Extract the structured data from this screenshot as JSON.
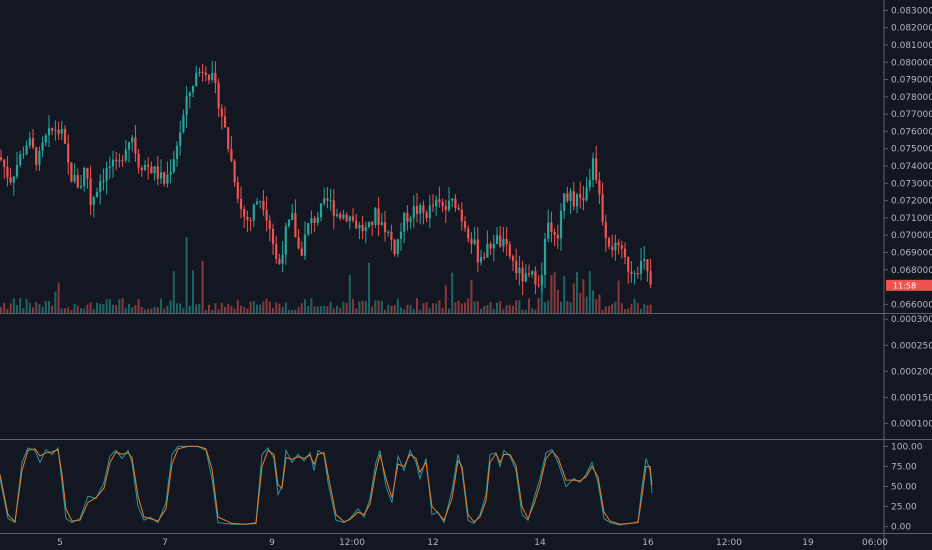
{
  "colors": {
    "background": "#131722",
    "up": "#26a69a",
    "down": "#ef5350",
    "k_line": "#2196a8",
    "d_line": "#e67e22",
    "separator": "#5d606b",
    "axis_text": "#b2b5be"
  },
  "chart_data": [
    {
      "type": "candlestick",
      "panel": "price",
      "y_ticks": [
        "0.083000",
        "0.082000",
        "0.081000",
        "0.080000",
        "0.079000",
        "0.078000",
        "0.077000",
        "0.076000",
        "0.075000",
        "0.074000",
        "0.073000",
        "0.072000",
        "0.071000",
        "0.070000",
        "0.069000",
        "0.068000",
        "0.066000"
      ],
      "ylim": [
        0.0655,
        0.0836
      ],
      "last_price_label": "11:58",
      "last_price": 0.0671,
      "path": [
        [
          0,
          0.0745
        ],
        [
          10,
          0.0732
        ],
        [
          20,
          0.0745
        ],
        [
          28,
          0.0755
        ],
        [
          38,
          0.0742
        ],
        [
          45,
          0.0755
        ],
        [
          55,
          0.0762
        ],
        [
          62,
          0.0758
        ],
        [
          70,
          0.0735
        ],
        [
          80,
          0.0728
        ],
        [
          86,
          0.0742
        ],
        [
          90,
          0.0718
        ],
        [
          95,
          0.0725
        ],
        [
          100,
          0.0732
        ],
        [
          110,
          0.074
        ],
        [
          118,
          0.0738
        ],
        [
          125,
          0.0752
        ],
        [
          132,
          0.0758
        ],
        [
          138,
          0.0742
        ],
        [
          148,
          0.074
        ],
        [
          158,
          0.0735
        ],
        [
          165,
          0.073
        ],
        [
          172,
          0.0742
        ],
        [
          180,
          0.076
        ],
        [
          188,
          0.078
        ],
        [
          195,
          0.0792
        ],
        [
          205,
          0.0798
        ],
        [
          212,
          0.079
        ],
        [
          220,
          0.0775
        ],
        [
          228,
          0.0752
        ],
        [
          236,
          0.073
        ],
        [
          242,
          0.0712
        ],
        [
          250,
          0.0708
        ],
        [
          256,
          0.072
        ],
        [
          262,
          0.0722
        ],
        [
          270,
          0.0705
        ],
        [
          278,
          0.068
        ],
        [
          285,
          0.07
        ],
        [
          292,
          0.071
        ],
        [
          300,
          0.0688
        ],
        [
          308,
          0.0705
        ],
        [
          318,
          0.0712
        ],
        [
          328,
          0.072
        ],
        [
          338,
          0.0712
        ],
        [
          348,
          0.0712
        ],
        [
          358,
          0.0705
        ],
        [
          368,
          0.0702
        ],
        [
          375,
          0.0712
        ],
        [
          385,
          0.0705
        ],
        [
          395,
          0.0692
        ],
        [
          405,
          0.071
        ],
        [
          415,
          0.0715
        ],
        [
          425,
          0.0712
        ],
        [
          435,
          0.0718
        ],
        [
          445,
          0.0715
        ],
        [
          455,
          0.072
        ],
        [
          462,
          0.071
        ],
        [
          470,
          0.07
        ],
        [
          478,
          0.0688
        ],
        [
          486,
          0.069
        ],
        [
          494,
          0.0698
        ],
        [
          502,
          0.0695
        ],
        [
          510,
          0.0688
        ],
        [
          518,
          0.0678
        ],
        [
          526,
          0.0674
        ],
        [
          534,
          0.0676
        ],
        [
          542,
          0.0675
        ],
        [
          548,
          0.0712
        ],
        [
          556,
          0.0695
        ],
        [
          564,
          0.0725
        ],
        [
          572,
          0.0722
        ],
        [
          580,
          0.0718
        ],
        [
          588,
          0.0728
        ],
        [
          594,
          0.0745
        ],
        [
          600,
          0.0718
        ],
        [
          607,
          0.0698
        ],
        [
          615,
          0.0692
        ],
        [
          622,
          0.0688
        ],
        [
          630,
          0.068
        ],
        [
          637,
          0.0682
        ],
        [
          644,
          0.0684
        ],
        [
          650,
          0.0671
        ]
      ],
      "last_x": 651
    },
    {
      "type": "bar",
      "panel": "volume",
      "note": "volume bars at base of price panel (no axis labels)"
    },
    {
      "type": "line",
      "panel": "indicator-empty",
      "y_ticks": [
        "0.000300",
        "0.000250",
        "0.000200",
        "0.000150",
        "0.000100"
      ],
      "ylim": [
        7e-05,
        0.00031
      ]
    },
    {
      "type": "line",
      "panel": "stochastic",
      "y_ticks": [
        "100.00",
        "75.00",
        "50.00",
        "25.00",
        "0.00"
      ],
      "ylim": [
        -8,
        108
      ],
      "series": [
        {
          "values_key": "k",
          "color_key": "k_line"
        },
        {
          "values_key": "d",
          "color_key": "d_line"
        }
      ],
      "k_path": [
        [
          0,
          60
        ],
        [
          8,
          10
        ],
        [
          15,
          5
        ],
        [
          22,
          80
        ],
        [
          28,
          98
        ],
        [
          35,
          95
        ],
        [
          40,
          80
        ],
        [
          46,
          96
        ],
        [
          52,
          90
        ],
        [
          58,
          98
        ],
        [
          62,
          55
        ],
        [
          66,
          10
        ],
        [
          72,
          5
        ],
        [
          80,
          10
        ],
        [
          88,
          38
        ],
        [
          96,
          35
        ],
        [
          104,
          55
        ],
        [
          110,
          88
        ],
        [
          116,
          95
        ],
        [
          122,
          85
        ],
        [
          128,
          95
        ],
        [
          132,
          80
        ],
        [
          138,
          25
        ],
        [
          144,
          8
        ],
        [
          150,
          12
        ],
        [
          158,
          5
        ],
        [
          166,
          30
        ],
        [
          172,
          90
        ],
        [
          178,
          100
        ],
        [
          188,
          100
        ],
        [
          198,
          100
        ],
        [
          206,
          95
        ],
        [
          212,
          60
        ],
        [
          218,
          5
        ],
        [
          232,
          3
        ],
        [
          246,
          3
        ],
        [
          256,
          5
        ],
        [
          262,
          90
        ],
        [
          268,
          98
        ],
        [
          274,
          85
        ],
        [
          278,
          40
        ],
        [
          282,
          50
        ],
        [
          286,
          95
        ],
        [
          292,
          80
        ],
        [
          298,
          90
        ],
        [
          304,
          82
        ],
        [
          310,
          92
        ],
        [
          314,
          70
        ],
        [
          318,
          95
        ],
        [
          324,
          90
        ],
        [
          328,
          55
        ],
        [
          336,
          8
        ],
        [
          344,
          5
        ],
        [
          350,
          10
        ],
        [
          358,
          22
        ],
        [
          364,
          12
        ],
        [
          370,
          35
        ],
        [
          376,
          80
        ],
        [
          380,
          95
        ],
        [
          386,
          50
        ],
        [
          392,
          30
        ],
        [
          398,
          88
        ],
        [
          404,
          70
        ],
        [
          410,
          95
        ],
        [
          416,
          80
        ],
        [
          420,
          60
        ],
        [
          426,
          85
        ],
        [
          432,
          15
        ],
        [
          438,
          18
        ],
        [
          444,
          5
        ],
        [
          452,
          45
        ],
        [
          458,
          90
        ],
        [
          462,
          70
        ],
        [
          468,
          8
        ],
        [
          474,
          4
        ],
        [
          480,
          15
        ],
        [
          486,
          40
        ],
        [
          490,
          90
        ],
        [
          496,
          92
        ],
        [
          500,
          75
        ],
        [
          504,
          95
        ],
        [
          510,
          88
        ],
        [
          516,
          70
        ],
        [
          522,
          15
        ],
        [
          528,
          8
        ],
        [
          534,
          35
        ],
        [
          540,
          60
        ],
        [
          546,
          92
        ],
        [
          552,
          96
        ],
        [
          558,
          80
        ],
        [
          566,
          50
        ],
        [
          574,
          60
        ],
        [
          580,
          55
        ],
        [
          586,
          65
        ],
        [
          592,
          80
        ],
        [
          598,
          55
        ],
        [
          604,
          10
        ],
        [
          610,
          5
        ],
        [
          620,
          2
        ],
        [
          630,
          4
        ],
        [
          638,
          6
        ],
        [
          642,
          50
        ],
        [
          646,
          85
        ],
        [
          650,
          70
        ],
        [
          652,
          42
        ]
      ],
      "d_path": [
        [
          0,
          65
        ],
        [
          8,
          15
        ],
        [
          15,
          6
        ],
        [
          22,
          70
        ],
        [
          28,
          95
        ],
        [
          35,
          97
        ],
        [
          40,
          88
        ],
        [
          46,
          92
        ],
        [
          52,
          93
        ],
        [
          58,
          96
        ],
        [
          62,
          65
        ],
        [
          66,
          22
        ],
        [
          72,
          7
        ],
        [
          80,
          8
        ],
        [
          88,
          30
        ],
        [
          96,
          36
        ],
        [
          104,
          48
        ],
        [
          110,
          80
        ],
        [
          116,
          93
        ],
        [
          122,
          90
        ],
        [
          128,
          92
        ],
        [
          132,
          86
        ],
        [
          138,
          38
        ],
        [
          144,
          12
        ],
        [
          150,
          10
        ],
        [
          158,
          7
        ],
        [
          166,
          22
        ],
        [
          172,
          78
        ],
        [
          178,
          97
        ],
        [
          188,
          100
        ],
        [
          198,
          100
        ],
        [
          206,
          97
        ],
        [
          212,
          72
        ],
        [
          218,
          12
        ],
        [
          232,
          4
        ],
        [
          246,
          3
        ],
        [
          256,
          4
        ],
        [
          262,
          75
        ],
        [
          268,
          95
        ],
        [
          274,
          90
        ],
        [
          278,
          52
        ],
        [
          282,
          48
        ],
        [
          286,
          86
        ],
        [
          292,
          84
        ],
        [
          298,
          87
        ],
        [
          304,
          85
        ],
        [
          310,
          89
        ],
        [
          314,
          78
        ],
        [
          318,
          90
        ],
        [
          324,
          92
        ],
        [
          328,
          65
        ],
        [
          336,
          15
        ],
        [
          344,
          6
        ],
        [
          350,
          9
        ],
        [
          358,
          18
        ],
        [
          364,
          15
        ],
        [
          370,
          28
        ],
        [
          376,
          70
        ],
        [
          380,
          90
        ],
        [
          386,
          60
        ],
        [
          392,
          36
        ],
        [
          398,
          78
        ],
        [
          404,
          75
        ],
        [
          410,
          90
        ],
        [
          416,
          85
        ],
        [
          420,
          68
        ],
        [
          426,
          80
        ],
        [
          432,
          25
        ],
        [
          438,
          17
        ],
        [
          444,
          8
        ],
        [
          452,
          35
        ],
        [
          458,
          82
        ],
        [
          462,
          75
        ],
        [
          468,
          15
        ],
        [
          474,
          6
        ],
        [
          480,
          12
        ],
        [
          486,
          32
        ],
        [
          490,
          80
        ],
        [
          496,
          91
        ],
        [
          500,
          80
        ],
        [
          504,
          90
        ],
        [
          510,
          90
        ],
        [
          516,
          76
        ],
        [
          522,
          25
        ],
        [
          528,
          10
        ],
        [
          534,
          28
        ],
        [
          540,
          52
        ],
        [
          546,
          85
        ],
        [
          552,
          94
        ],
        [
          558,
          86
        ],
        [
          566,
          58
        ],
        [
          574,
          58
        ],
        [
          580,
          57
        ],
        [
          586,
          62
        ],
        [
          592,
          75
        ],
        [
          598,
          62
        ],
        [
          604,
          18
        ],
        [
          610,
          7
        ],
        [
          620,
          3
        ],
        [
          630,
          4
        ],
        [
          638,
          5
        ],
        [
          642,
          38
        ],
        [
          646,
          75
        ],
        [
          650,
          75
        ],
        [
          652,
          52
        ]
      ]
    }
  ],
  "x_axis": {
    "labels": [
      {
        "text": "5",
        "x": 60
      },
      {
        "text": "7",
        "x": 165
      },
      {
        "text": "9",
        "x": 272
      },
      {
        "text": "12:00",
        "x": 352
      },
      {
        "text": "12",
        "x": 433
      },
      {
        "text": "14",
        "x": 540
      },
      {
        "text": "16",
        "x": 648
      },
      {
        "text": "12:00",
        "x": 729
      },
      {
        "text": "19",
        "x": 808
      },
      {
        "text": "06:00",
        "x": 875
      }
    ]
  }
}
